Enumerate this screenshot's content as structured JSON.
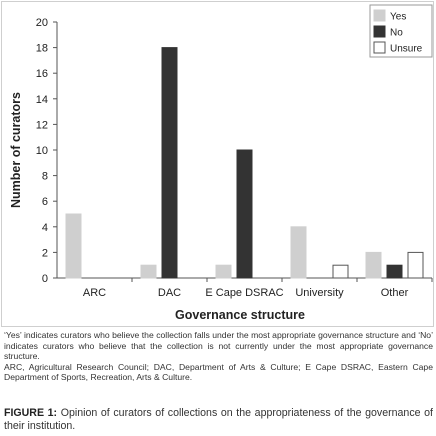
{
  "chart_data": {
    "type": "bar",
    "categories": [
      "ARC",
      "DAC",
      "E Cape DSRAC",
      "University",
      "Other"
    ],
    "series": [
      {
        "name": "Yes",
        "values": [
          5,
          1,
          1,
          4,
          2
        ],
        "color": "#cfcfcf",
        "stroke": "#cfcfcf"
      },
      {
        "name": "No",
        "values": [
          0,
          18,
          10,
          0,
          1
        ],
        "color": "#333333",
        "stroke": "#333333"
      },
      {
        "name": "Unsure",
        "values": [
          0,
          0,
          0,
          1,
          2
        ],
        "color": "#ffffff",
        "stroke": "#555555"
      }
    ],
    "xlabel": "Governance structure",
    "ylabel": "Number of curators",
    "ylim": [
      0,
      20
    ],
    "yticks": [
      0,
      2,
      4,
      6,
      8,
      10,
      12,
      14,
      16,
      18,
      20
    ],
    "legend_position": "top-right",
    "grid": false
  },
  "notes": {
    "line1": "‘Yes’ indicates curators who believe the collection falls under the most appropriate governance structure and ‘No’ indicates curators who believe that the collection is not currently under the most appropriate governance structure.",
    "line2": "ARC, Agricultural Research Council; DAC, Department of Arts & Culture; E Cape DSRAC, Eastern Cape Department of Sports, Recreation, Arts & Culture."
  },
  "figure": {
    "label": "FIGURE 1:",
    "text": "Opinion of curators of collections on the appropriateness of the governance of their institution."
  }
}
